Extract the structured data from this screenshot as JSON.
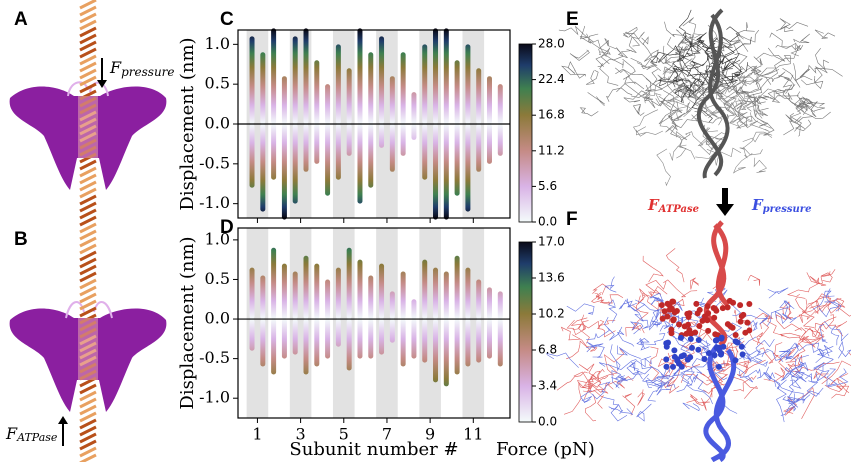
{
  "panel_labels": [
    "A",
    "B",
    "C",
    "D",
    "E",
    "F"
  ],
  "annotations": {
    "a_force": {
      "symbol": "F",
      "subscript": "pressure"
    },
    "b_force": {
      "symbol": "F",
      "subscript": "ATPase"
    },
    "f_red": {
      "symbol": "F",
      "subscript": "ATPase"
    },
    "f_blue": {
      "symbol": "F",
      "subscript": "pressure"
    }
  },
  "chart_data": [
    {
      "type": "strip",
      "ylabel": "Displacement (nm)",
      "x": [
        0.75,
        1.25,
        1.75,
        2.25,
        2.75,
        3.25,
        3.75,
        4.25,
        4.75,
        5.25,
        5.75,
        6.25,
        6.75,
        7.25,
        7.75,
        8.25,
        8.75,
        9.25,
        9.75,
        10.25,
        10.75,
        11.25,
        11.75,
        12.25
      ],
      "upper": [
        1.1,
        0.9,
        1.2,
        0.6,
        1.1,
        1.2,
        0.8,
        0.5,
        1.0,
        0.7,
        1.2,
        0.9,
        1.1,
        0.6,
        0.9,
        0.4,
        1.0,
        1.2,
        1.2,
        0.8,
        1.0,
        0.7,
        0.6,
        0.5
      ],
      "lower": [
        -0.8,
        -1.1,
        -0.7,
        -1.2,
        -1.0,
        -0.6,
        -0.5,
        -0.9,
        -0.7,
        -0.4,
        -1.0,
        -0.8,
        -0.3,
        -0.6,
        -0.4,
        -0.2,
        -0.7,
        -1.2,
        -1.2,
        -0.9,
        -1.1,
        -0.6,
        -0.5,
        -0.4
      ],
      "xlim": [
        0.1,
        12.7
      ],
      "xticks": [
        1,
        3,
        5,
        7,
        9,
        11
      ],
      "ylim": [
        -1.18,
        1.18
      ],
      "yticks": [
        {
          "value": -1.0,
          "label": "-1.0"
        },
        -0.5,
        {
          "value": 0.0,
          "label": "0.0"
        },
        0.5,
        {
          "value": 1.0,
          "label": "1.0"
        }
      ],
      "colorbar": {
        "lim": [
          0,
          28
        ],
        "ticks": [
          {
            "value": 0,
            "label": "0.0"
          },
          5.6,
          11.2,
          16.8,
          22.4,
          {
            "value": 28,
            "label": "28.0"
          }
        ]
      }
    },
    {
      "type": "strip",
      "ylabel": "Displacement (nm)",
      "xlabel": "Subunit number #",
      "x": [
        0.75,
        1.25,
        1.75,
        2.25,
        2.75,
        3.25,
        3.75,
        4.25,
        4.75,
        5.25,
        5.75,
        6.25,
        6.75,
        7.25,
        7.75,
        8.25,
        8.75,
        9.25,
        9.75,
        10.25,
        10.75,
        11.25,
        11.75,
        12.25
      ],
      "upper": [
        0.65,
        0.55,
        0.9,
        0.7,
        0.6,
        0.8,
        0.7,
        0.5,
        0.65,
        0.9,
        0.75,
        0.55,
        0.7,
        0.35,
        0.6,
        0.25,
        0.75,
        0.65,
        0.6,
        0.8,
        0.65,
        0.5,
        0.4,
        0.35
      ],
      "lower": [
        -0.4,
        -0.6,
        -0.7,
        -0.5,
        -0.45,
        -0.7,
        -0.6,
        -0.5,
        -0.35,
        -0.65,
        -0.5,
        -0.5,
        -0.45,
        -0.3,
        -0.6,
        -0.5,
        -0.55,
        -0.8,
        -0.85,
        -0.7,
        -0.6,
        -0.55,
        -0.5,
        -0.6
      ],
      "xlim": [
        0.1,
        12.7
      ],
      "xticks": [
        1,
        3,
        5,
        7,
        9,
        11
      ],
      "ylim": [
        -1.25,
        1.15
      ],
      "yticks": [
        {
          "value": -1.0,
          "label": "-1.0"
        },
        -0.5,
        {
          "value": 0.0,
          "label": "0.0"
        },
        0.5,
        {
          "value": 1.0,
          "label": "1.0"
        }
      ],
      "colorbar": {
        "label": "Force (pN)",
        "lim": [
          0,
          17
        ],
        "ticks": [
          {
            "value": 0,
            "label": "0.0"
          },
          3.4,
          6.8,
          10.2,
          13.6,
          {
            "value": 17,
            "label": "17.0"
          }
        ]
      }
    }
  ]
}
